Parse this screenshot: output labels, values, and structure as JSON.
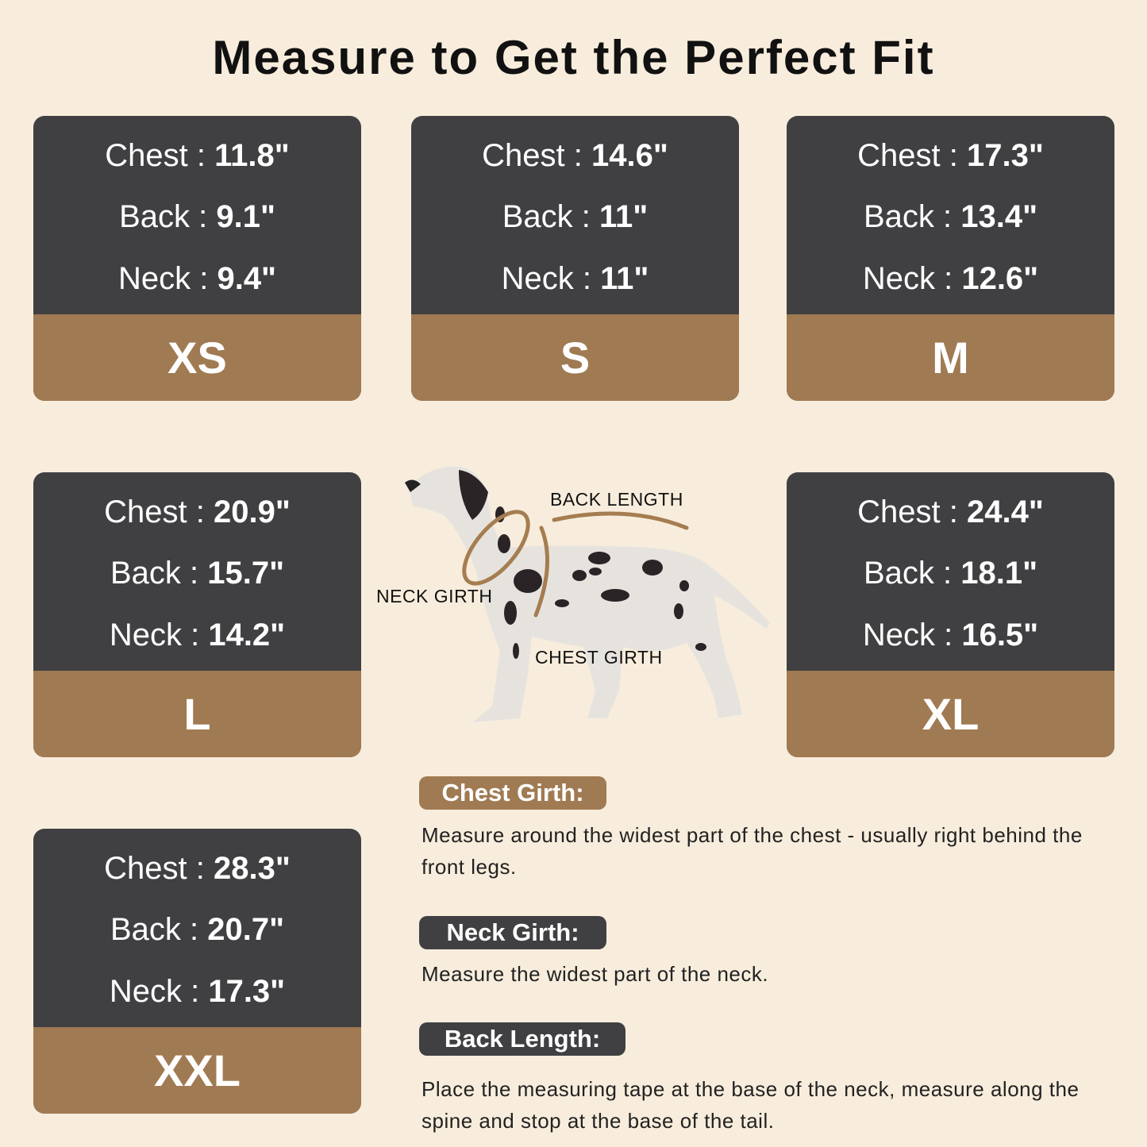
{
  "title": "Measure to Get the Perfect Fit",
  "colors": {
    "background": "#f8eddc",
    "card_dark": "#404043",
    "card_accent": "#a07a52"
  },
  "sizes": [
    {
      "size": "XS",
      "chest_label": "Chest : ",
      "chest": "11.8\"",
      "back_label": "Back : ",
      "back": "9.1\"",
      "neck_label": "Neck : ",
      "neck": "9.4\""
    },
    {
      "size": "S",
      "chest_label": "Chest : ",
      "chest": "14.6\"",
      "back_label": "Back : ",
      "back": "11\"",
      "neck_label": "Neck : ",
      "neck": "11\""
    },
    {
      "size": "M",
      "chest_label": "Chest : ",
      "chest": "17.3\"",
      "back_label": "Back : ",
      "back": "13.4\"",
      "neck_label": "Neck : ",
      "neck": "12.6\""
    },
    {
      "size": "L",
      "chest_label": "Chest : ",
      "chest": "20.9\"",
      "back_label": "Back : ",
      "back": "15.7\"",
      "neck_label": "Neck : ",
      "neck": "14.2\""
    },
    {
      "size": "XL",
      "chest_label": "Chest : ",
      "chest": "24.4\"",
      "back_label": "Back : ",
      "back": "18.1\"",
      "neck_label": "Neck : ",
      "neck": "16.5\""
    },
    {
      "size": "XXL",
      "chest_label": "Chest : ",
      "chest": "28.3\"",
      "back_label": "Back : ",
      "back": "20.7\"",
      "neck_label": "Neck : ",
      "neck": "17.3\""
    }
  ],
  "diagram": {
    "back_length": "BACK LENGTH",
    "neck_girth": "NECK GIRTH",
    "chest_girth": "CHEST GIRTH"
  },
  "instructions": [
    {
      "heading": "Chest Girth:",
      "text": "Measure around the widest part of the chest - usually right behind the front legs."
    },
    {
      "heading": "Neck Girth:",
      "text": "Measure the widest part of the neck."
    },
    {
      "heading": "Back Length:",
      "text": "Place the measuring tape at the base of the neck, measure along the spine and stop at the base of the tail."
    }
  ]
}
